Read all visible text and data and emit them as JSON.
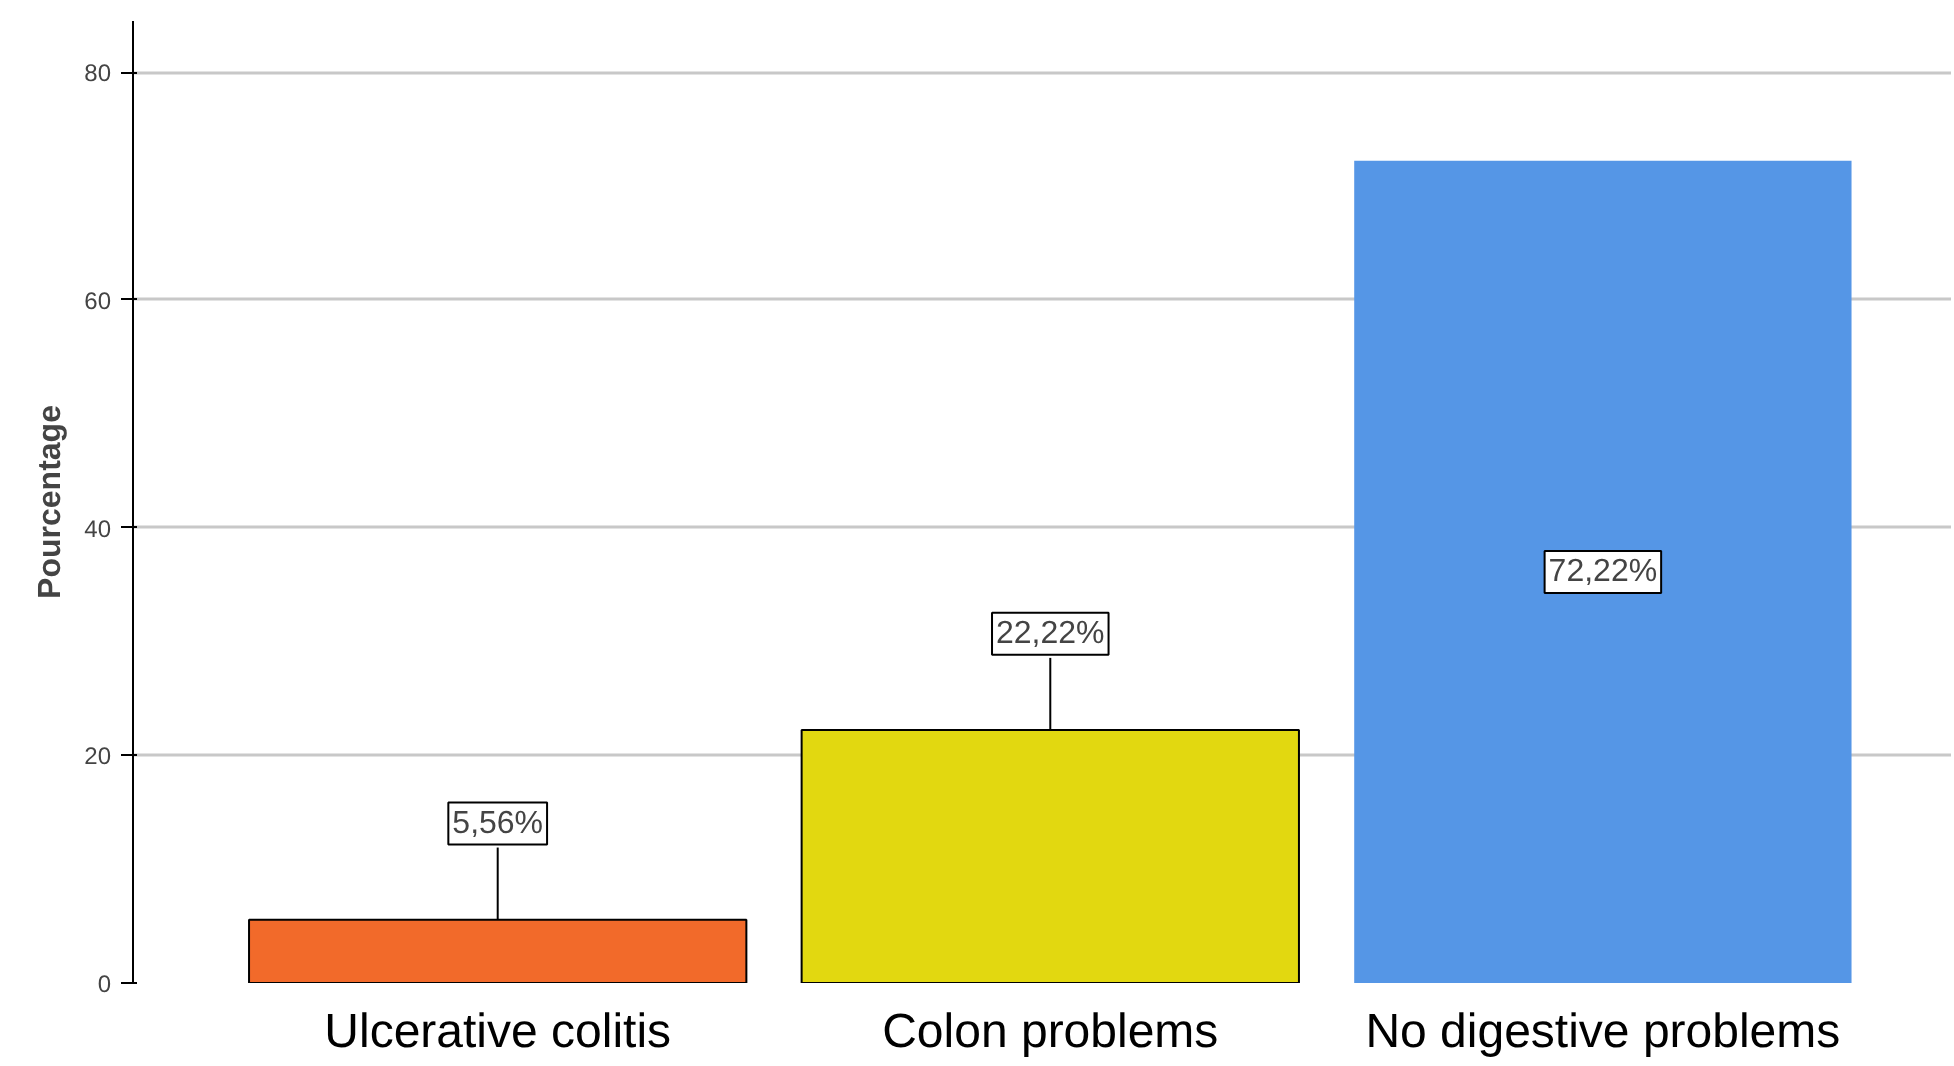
{
  "chart_data": {
    "type": "bar",
    "ylabel": "Pourcentage",
    "categories": [
      "Ulcerative colitis",
      "Colon problems",
      "No digestive problems"
    ],
    "values": [
      5.56,
      22.22,
      72.22
    ],
    "colors": [
      "#f26a2a",
      "#e2d810",
      "#5596e6"
    ],
    "value_labels": [
      "5,56%",
      "22,22%",
      "72,22%"
    ],
    "ylim": [
      0,
      84.5
    ],
    "yticks": [
      0,
      20,
      40,
      60,
      80
    ],
    "grid": "y"
  }
}
